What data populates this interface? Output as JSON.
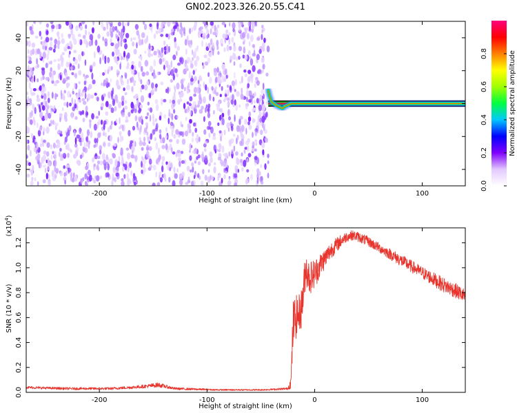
{
  "figure": {
    "title": "GN02.2023.326.20.55.C41"
  },
  "chart_data": [
    {
      "type": "heatmap",
      "xlabel": "Height of straight line (km)",
      "ylabel": "Frequency (Hz)",
      "xlim": [
        -268,
        140
      ],
      "ylim": [
        -50,
        50
      ],
      "x_ticks": [
        -200,
        -100,
        0,
        100
      ],
      "x_tick_labels": [
        "-200",
        "-100",
        "0",
        "100"
      ],
      "y_ticks": [
        -40,
        -20,
        0,
        20,
        40
      ],
      "y_tick_labels": [
        "-40",
        "-20",
        "0",
        "20",
        "40"
      ],
      "noise_region_x": [
        -268,
        -43
      ],
      "signal_track": {
        "x": [
          -43,
          -42,
          -41,
          -40,
          -38,
          -36,
          -33,
          -30,
          -28,
          -25,
          -22,
          -18,
          -12,
          -6,
          0,
          20,
          140
        ],
        "freq": [
          8,
          5,
          3,
          1,
          0,
          -1,
          -2,
          -3,
          -2,
          -1,
          0,
          0,
          0,
          0,
          0,
          0,
          0
        ]
      },
      "steady_tone": {
        "x_start": -43,
        "x_end": 140,
        "freq": 0
      },
      "grid": false,
      "colorbar": {
        "label": "Normalized spectral amplitude",
        "range": [
          0,
          1
        ],
        "ticks": [
          0,
          0.2,
          0.4,
          0.6,
          0.8
        ],
        "tick_labels": [
          "0.0",
          "0.2",
          "0.4",
          "0.6",
          "0.8"
        ],
        "colors": [
          "#ffffff",
          "#e3c8ff",
          "#8000ff",
          "#0000ff",
          "#00c8ff",
          "#00ff40",
          "#a0ff00",
          "#ffff00",
          "#ff8000",
          "#ff0000",
          "#ff0080"
        ]
      }
    },
    {
      "type": "line",
      "xlabel": "Height of straight line (km)",
      "ylabel": "SNR (10 * v/v)",
      "y_exponent_label": "(x10",
      "y_exponent_power": "4",
      "y_exponent_close": ")",
      "xlim": [
        -268,
        140
      ],
      "ylim": [
        0,
        1.32
      ],
      "x_ticks": [
        -200,
        -100,
        0,
        100
      ],
      "x_tick_labels": [
        "-200",
        "-100",
        "0",
        "100"
      ],
      "y_ticks": [
        0,
        0.2,
        0.4,
        0.6,
        0.8,
        1.0,
        1.2
      ],
      "y_tick_labels": [
        "0.0",
        "0.2",
        "0.4",
        "0.6",
        "0.8",
        "1.0",
        "1.2"
      ],
      "grid": false,
      "series": [
        {
          "color": "#e8342c",
          "x": [
            -268,
            -250,
            -230,
            -210,
            -190,
            -170,
            -155,
            -145,
            -140,
            -130,
            -110,
            -90,
            -70,
            -50,
            -35,
            -25,
            -22,
            -21,
            -20,
            -18,
            -15,
            -12,
            -10,
            -8,
            -5,
            0,
            5,
            10,
            15,
            20,
            25,
            30,
            35,
            40,
            50,
            60,
            70,
            80,
            90,
            100,
            110,
            120,
            130,
            140
          ],
          "y": [
            0.04,
            0.035,
            0.03,
            0.03,
            0.03,
            0.04,
            0.05,
            0.06,
            0.05,
            0.03,
            0.025,
            0.02,
            0.02,
            0.02,
            0.025,
            0.03,
            0.08,
            0.3,
            0.55,
            0.6,
            0.62,
            0.68,
            0.85,
            1.0,
            0.92,
            0.95,
            1.02,
            1.08,
            1.14,
            1.18,
            1.22,
            1.25,
            1.26,
            1.25,
            1.21,
            1.16,
            1.11,
            1.06,
            1.01,
            0.96,
            0.91,
            0.86,
            0.82,
            0.77
          ],
          "noise_amplitude": [
            0.01,
            0.01,
            0.01,
            0.01,
            0.01,
            0.012,
            0.015,
            0.02,
            0.015,
            0.01,
            0.008,
            0.006,
            0.006,
            0.006,
            0.008,
            0.01,
            0.05,
            0.15,
            0.2,
            0.18,
            0.16,
            0.16,
            0.16,
            0.14,
            0.14,
            0.12,
            0.1,
            0.08,
            0.07,
            0.06,
            0.05,
            0.04,
            0.04,
            0.04,
            0.04,
            0.04,
            0.045,
            0.05,
            0.05,
            0.05,
            0.055,
            0.06,
            0.06,
            0.06
          ]
        }
      ]
    }
  ]
}
